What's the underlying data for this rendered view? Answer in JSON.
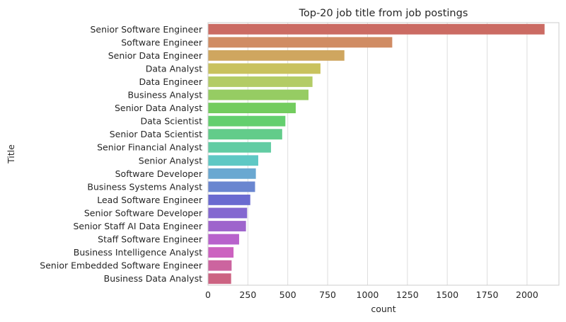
{
  "chart_data": {
    "type": "bar",
    "orientation": "horizontal",
    "title": "Top-20 job title from job postings",
    "xlabel": "count",
    "ylabel": "Title",
    "xlim": [
      0,
      2200
    ],
    "xticks": [
      0,
      250,
      500,
      750,
      1000,
      1250,
      1500,
      1750,
      2000
    ],
    "grid": "x",
    "categories": [
      "Senior Software Engineer",
      "Software Engineer",
      "Senior Data Engineer",
      "Data Analyst",
      "Data Engineer",
      "Business Analyst",
      "Senior Data Analyst",
      "Data Scientist",
      "Senior Data Scientist",
      "Senior Financial Analyst",
      "Senior Analyst",
      "Software Developer",
      "Business Systems Analyst",
      "Lead Software Engineer",
      "Senior Software Developer",
      "Senior Staff AI Data Engineer",
      "Staff Software Engineer",
      "Business Intelligence Analyst",
      "Senior Embedded Software Engineer",
      "Business Data Analyst"
    ],
    "values": [
      2110,
      1155,
      855,
      705,
      655,
      630,
      550,
      485,
      465,
      395,
      315,
      300,
      295,
      265,
      245,
      238,
      195,
      160,
      148,
      145
    ],
    "colors": [
      "#cb6b63",
      "#d08c64",
      "#cfa65f",
      "#c9c25e",
      "#b3cc66",
      "#96cc63",
      "#73cc5e",
      "#63cf6e",
      "#62cc8a",
      "#62cca3",
      "#5ec8c4",
      "#6aa8d1",
      "#6a86d0",
      "#6a6ad0",
      "#8468d0",
      "#9e64cc",
      "#b862cc",
      "#cc62c0",
      "#cc649f",
      "#cc6382"
    ]
  }
}
